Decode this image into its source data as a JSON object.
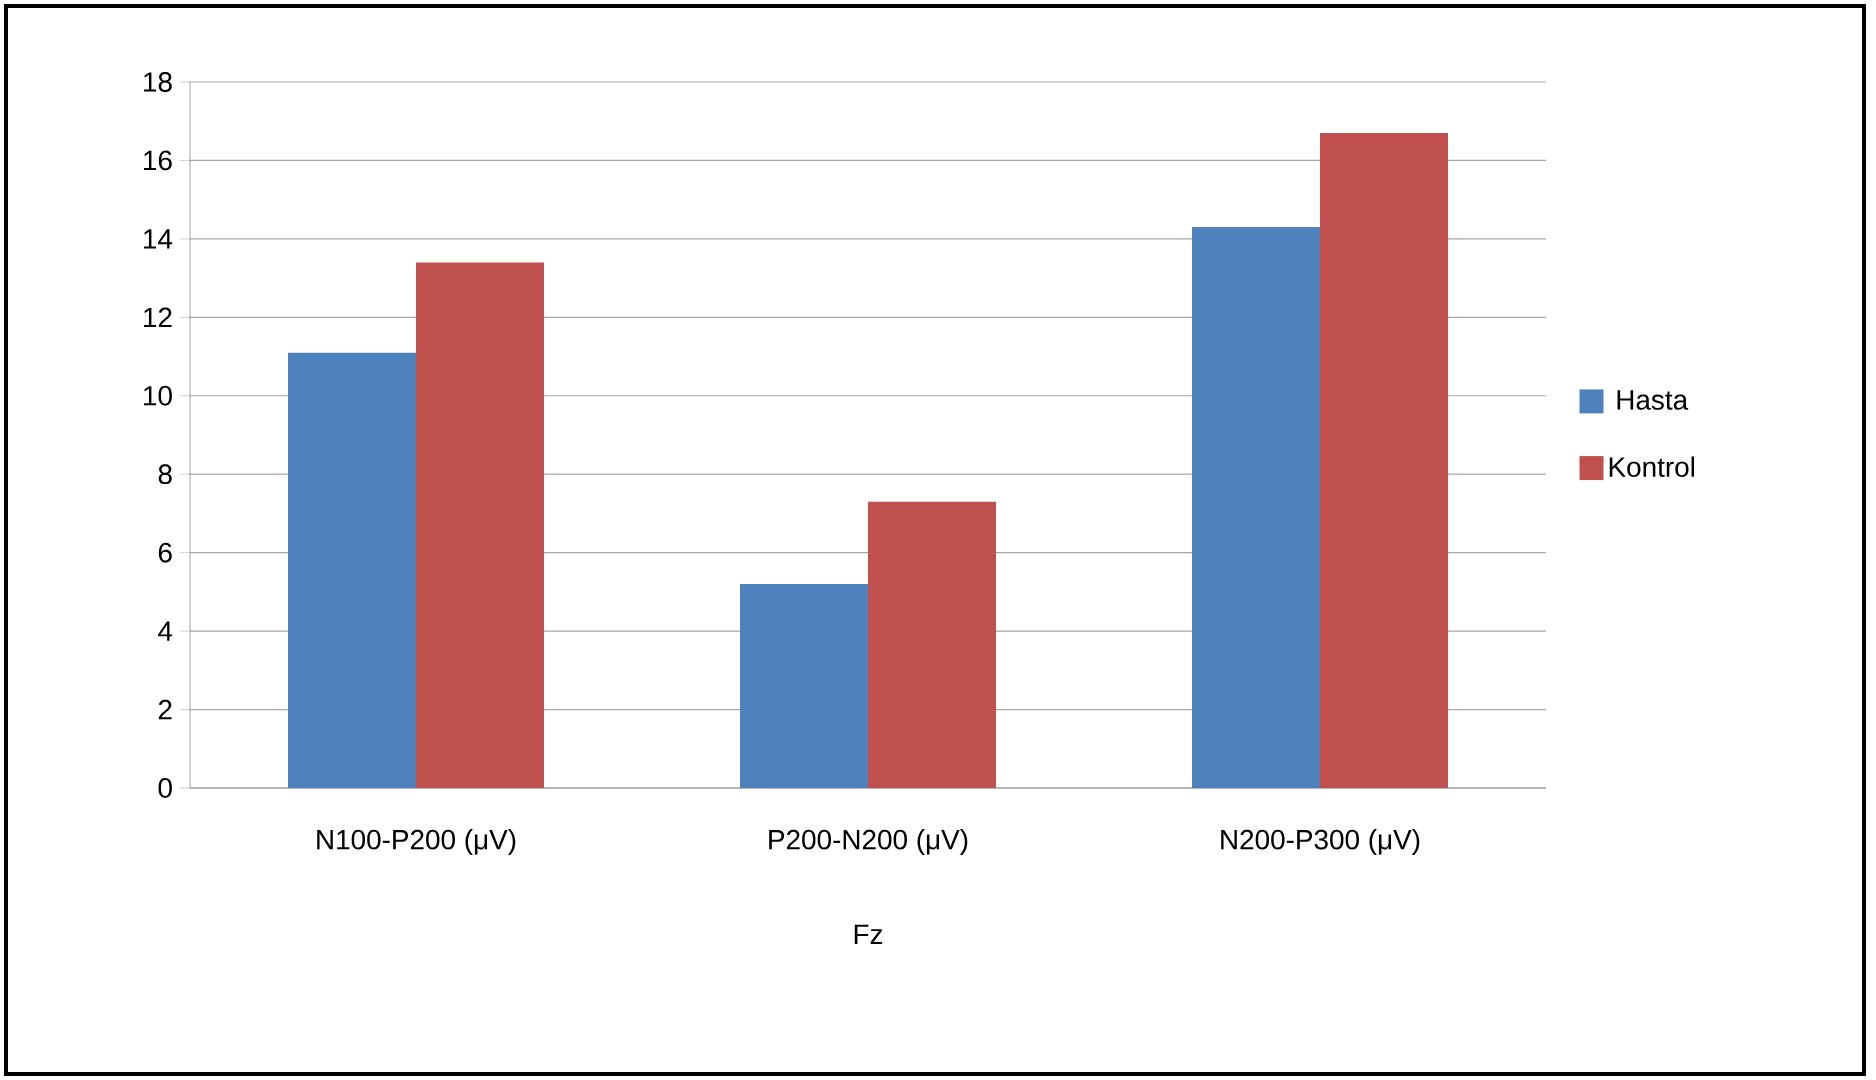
{
  "chart_data": {
    "type": "bar",
    "xlabel": "Fz",
    "categories": [
      "N100-P200 (μV)",
      "P200-N200 (μV)",
      "N200-P300 (μV)"
    ],
    "series": [
      {
        "name": "Hasta",
        "color": "#4f81bd",
        "values": [
          11.1,
          5.2,
          14.3
        ]
      },
      {
        "name": "Kontrol",
        "color": "#c0504d",
        "values": [
          13.4,
          7.3,
          16.7
        ]
      }
    ],
    "ylim": [
      0,
      18
    ],
    "yticks": [
      0,
      2,
      4,
      6,
      8,
      10,
      12,
      14,
      16,
      18
    ],
    "grid": "y",
    "legend": "right"
  }
}
